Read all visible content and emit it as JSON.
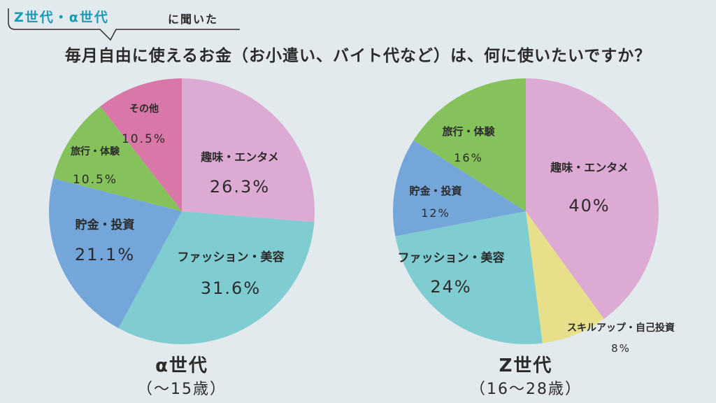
{
  "header": {
    "tag_accent": "Z世代・α世代",
    "tag_plain": "に聞いた",
    "title": "毎月自由に使えるお金（お小遣い、バイト代など）は、何に使いたいですか？"
  },
  "colors": {
    "accent": "#1a9bb5",
    "background": "#e3eaee"
  },
  "chart_data": [
    {
      "type": "pie",
      "group_name": "α世代",
      "group_range": "（〜15歳）",
      "start_angle_deg": 0,
      "direction": "clockwise",
      "slices": [
        {
          "label": "趣味・エンタメ",
          "value": 26.3,
          "value_label": "26.3%",
          "color": "#dcaad3"
        },
        {
          "label": "ファッション・美容",
          "value": 31.6,
          "value_label": "31.6%",
          "color": "#7fcdd1"
        },
        {
          "label": "貯金・投資",
          "value": 21.1,
          "value_label": "21.1%",
          "color": "#74a6da"
        },
        {
          "label": "旅行・体験",
          "value": 10.5,
          "value_label": "10.5%",
          "color": "#86c25b"
        },
        {
          "label": "その他",
          "value": 10.5,
          "value_label": "10.5%",
          "color": "#d977a8"
        }
      ]
    },
    {
      "type": "pie",
      "group_name": "Z世代",
      "group_range": "（16〜28歳）",
      "start_angle_deg": 0,
      "direction": "clockwise",
      "slices": [
        {
          "label": "趣味・エンタメ",
          "value": 40,
          "value_label": "40%",
          "color": "#dcaad3"
        },
        {
          "label": "スキルアップ・自己投資",
          "value": 8,
          "value_label": "8%",
          "color": "#e8df8a"
        },
        {
          "label": "ファッション・美容",
          "value": 24,
          "value_label": "24%",
          "color": "#7fcdd1"
        },
        {
          "label": "貯金・投資",
          "value": 12,
          "value_label": "12%",
          "color": "#74a6da"
        },
        {
          "label": "旅行・体験",
          "value": 16,
          "value_label": "16%",
          "color": "#86c25b"
        }
      ]
    }
  ]
}
